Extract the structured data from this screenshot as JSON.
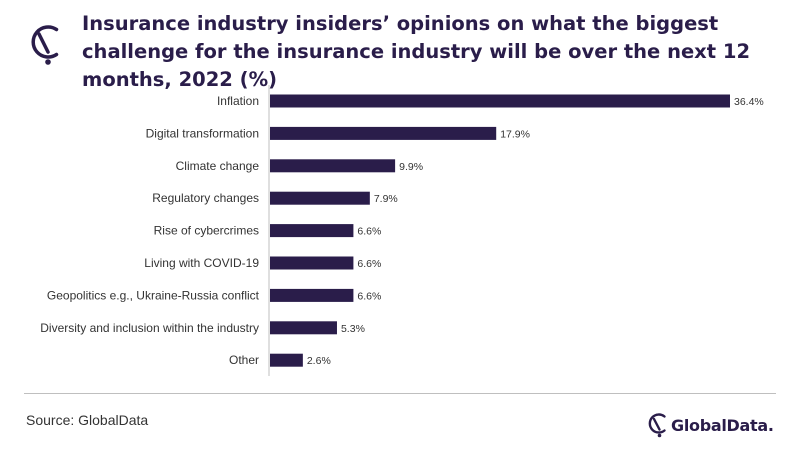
{
  "header": {
    "title": "Insurance industry insiders’ opinions on what the biggest challenge for the insurance industry will be over the next 12 months, 2022 (%)"
  },
  "chart_data": {
    "type": "bar",
    "orientation": "horizontal",
    "categories": [
      "Inflation",
      "Digital transformation",
      "Climate change",
      "Regulatory changes",
      "Rise of cybercrimes",
      "Living with COVID-19",
      "Geopolitics e.g., Ukraine-Russia conflict",
      "Diversity and inclusion within the industry",
      "Other"
    ],
    "values": [
      36.4,
      17.9,
      9.9,
      7.9,
      6.6,
      6.6,
      6.6,
      5.3,
      2.6
    ],
    "value_labels": [
      "36.4%",
      "17.9%",
      "9.9%",
      "7.9%",
      "6.6%",
      "6.6%",
      "6.6%",
      "5.3%",
      "2.6%"
    ],
    "xlim": [
      0,
      36.4
    ],
    "grid": false,
    "bar_color": "#2a1d4a"
  },
  "footer": {
    "source": "Source: GlobalData",
    "brand": "GlobalData."
  },
  "colors": {
    "brand": "#2a1d4a",
    "text": "#333333",
    "axis": "#bfbfbf"
  },
  "icons": {
    "logo": "globaldata-logo-icon"
  }
}
